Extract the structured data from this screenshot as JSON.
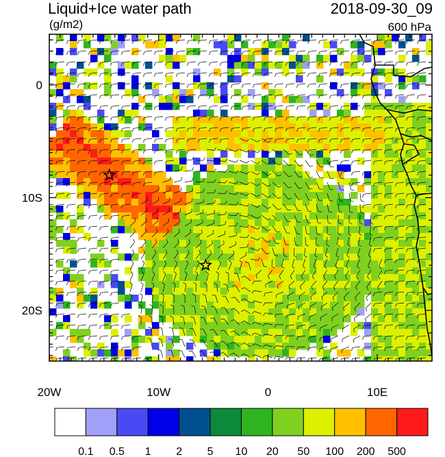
{
  "header": {
    "title": "Liquid+Ice water path",
    "units": "(g/m2)",
    "datetime": "2018-09-30_09",
    "level": "600 hPa"
  },
  "map": {
    "extent": {
      "lon": [
        -20,
        15
      ],
      "lat": [
        -24.5,
        4.5
      ]
    },
    "lon_ticks": [
      {
        "value": -20,
        "label": "20W"
      },
      {
        "value": -10,
        "label": "10W"
      },
      {
        "value": 0,
        "label": "0"
      },
      {
        "value": 10,
        "label": "10E"
      }
    ],
    "lat_ticks": [
      {
        "value": 0,
        "label": "0"
      },
      {
        "value": -10,
        "label": "10S"
      },
      {
        "value": -20,
        "label": "20S"
      }
    ],
    "stars": [
      {
        "lon": -14.5,
        "lat": -8
      },
      {
        "lon": -5.7,
        "lat": -16
      }
    ],
    "colors": {
      "ocean": "#ffffff",
      "land_outline": "#000000"
    }
  },
  "colorbar": {
    "colors": [
      "#ffffff",
      "#a0a0f8",
      "#4a4af4",
      "#0000e8",
      "#005090",
      "#0a8a3a",
      "#2eb41e",
      "#80d020",
      "#dcf000",
      "#ffc000",
      "#ff6600",
      "#ff1a1a"
    ],
    "labels": [
      "0.1",
      "0.5",
      "1",
      "2",
      "5",
      "10",
      "20",
      "50",
      "100",
      "200",
      "500"
    ]
  }
}
